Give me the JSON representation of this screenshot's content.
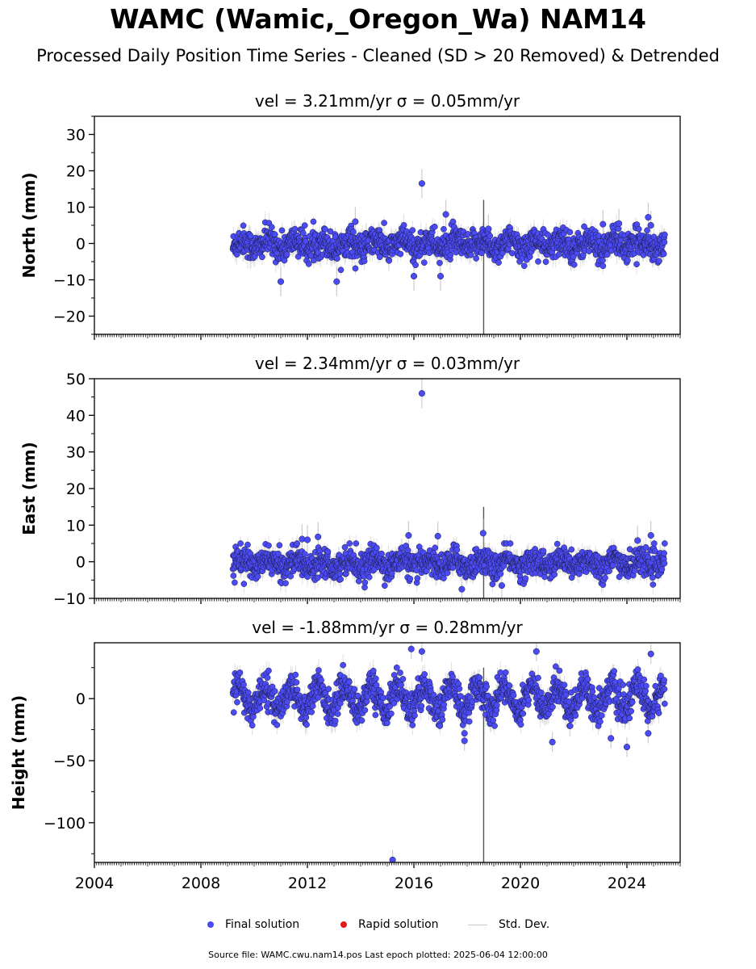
{
  "title": "WAMC (Wamic,_Oregon_Wa) NAM14",
  "subtitle": "Processed Daily Position Time Series - Cleaned (SD > 20 Removed) & Detrended",
  "legend": {
    "final": "Final solution",
    "rapid": "Rapid solution",
    "std": "Std. Dev."
  },
  "footer": "Source file: WAMC.cwu.nam14.pos  Last epoch plotted: 2025-06-04 12:00:00",
  "colors": {
    "final": "#4b4bf5",
    "rapid": "#e31a1c",
    "std": "#cccccc",
    "marker_edge": "#1a1a40"
  },
  "chart_data": [
    {
      "type": "scatter",
      "panel": "north",
      "title": "vel = 3.21mm/yr   σ = 0.05mm/yr",
      "ylabel": "North (mm)",
      "xlim": [
        2004,
        2026
      ],
      "ylim": [
        -25,
        35
      ],
      "yticks": [
        -20,
        -10,
        0,
        10,
        20,
        30
      ],
      "ytick_labels": [
        "−20",
        "−10",
        "0",
        "10",
        "20",
        "30"
      ],
      "xticks": [
        2004,
        2008,
        2012,
        2016,
        2020,
        2024
      ],
      "data_start": 2009.2,
      "data_end": 2025.42,
      "typical_range": [
        -6,
        4
      ],
      "band_sd": 2.2,
      "outliers": [
        [
          2016.3,
          16.5
        ],
        [
          2017.2,
          8.0
        ],
        [
          2011.0,
          -10.5
        ],
        [
          2013.1,
          -10.5
        ],
        [
          2016.0,
          -9.0
        ],
        [
          2017.0,
          -9.0
        ],
        [
          2013.8,
          6.0
        ],
        [
          2024.8,
          7.2
        ],
        [
          2024.9,
          5.0
        ],
        [
          2023.1,
          5.3
        ],
        [
          2023.7,
          5.5
        ],
        [
          2018.8,
          4.0
        ]
      ],
      "series": [
        {
          "name": "Final solution"
        }
      ]
    },
    {
      "type": "scatter",
      "panel": "east",
      "title": "vel = 2.34mm/yr   σ = 0.03mm/yr",
      "ylabel": "East (mm)",
      "xlim": [
        2004,
        2026
      ],
      "ylim": [
        -10,
        50
      ],
      "yticks": [
        -10,
        0,
        10,
        20,
        30,
        40,
        50
      ],
      "ytick_labels": [
        "−10",
        "0",
        "10",
        "20",
        "30",
        "40",
        "50"
      ],
      "xticks": [
        2004,
        2008,
        2012,
        2016,
        2020,
        2024
      ],
      "data_start": 2009.2,
      "data_end": 2025.42,
      "typical_range": [
        -6,
        3
      ],
      "band_sd": 2.0,
      "outliers": [
        [
          2016.3,
          46.0
        ],
        [
          2015.8,
          7.2
        ],
        [
          2016.9,
          7.0
        ],
        [
          2018.6,
          7.8
        ],
        [
          2011.8,
          6.2
        ],
        [
          2012.4,
          6.8
        ],
        [
          2024.9,
          7.2
        ],
        [
          2024.4,
          5.8
        ],
        [
          2017.8,
          -7.5
        ],
        [
          2012.0,
          6.0
        ],
        [
          2019.3,
          -6.5
        ]
      ],
      "series": [
        {
          "name": "Final solution"
        }
      ]
    },
    {
      "type": "scatter",
      "panel": "height",
      "title": "vel = -1.88mm/yr   σ = 0.28mm/yr",
      "ylabel": "Height (mm)",
      "xlim": [
        2004,
        2026
      ],
      "ylim": [
        -132,
        45
      ],
      "yticks": [
        -100,
        -50,
        0
      ],
      "ytick_labels": [
        "−100",
        "−50",
        "0"
      ],
      "xticks": [
        2004,
        2008,
        2012,
        2016,
        2020,
        2024
      ],
      "xtick_labels": [
        "2004",
        "2008",
        "2012",
        "2016",
        "2020",
        "2024"
      ],
      "data_start": 2009.2,
      "data_end": 2025.42,
      "typical_range": [
        -20,
        25
      ],
      "band_sd": 7.0,
      "seasonal_amplitude": 10,
      "outliers": [
        [
          2015.2,
          -130.0
        ],
        [
          2024.0,
          -39.0
        ],
        [
          2023.4,
          -32.0
        ],
        [
          2021.2,
          -35.0
        ],
        [
          2017.9,
          -34.0
        ],
        [
          2017.9,
          -28.0
        ],
        [
          2016.3,
          38.0
        ],
        [
          2020.6,
          38.0
        ],
        [
          2024.9,
          36.0
        ],
        [
          2024.8,
          -28.0
        ],
        [
          2015.9,
          40.0
        ]
      ],
      "series": [
        {
          "name": "Final solution"
        }
      ]
    }
  ]
}
